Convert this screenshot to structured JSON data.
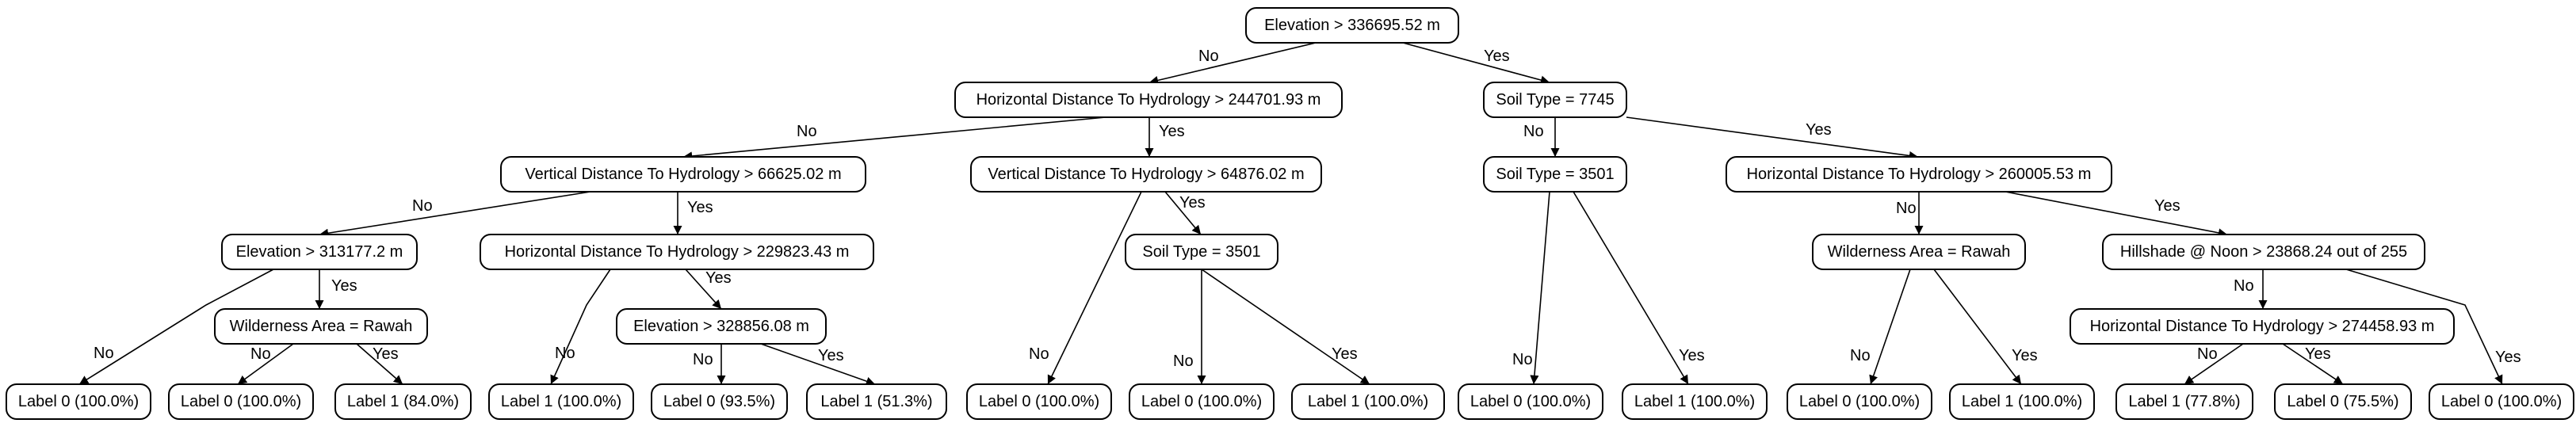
{
  "tree": {
    "nodes": [
      {
        "id": "n0",
        "text": "Elevation > 336695.52 m"
      },
      {
        "id": "n1",
        "text": "Horizontal Distance To Hydrology > 244701.93 m"
      },
      {
        "id": "n2",
        "text": "Soil Type = 7745"
      },
      {
        "id": "n3",
        "text": "Vertical Distance To Hydrology > 66625.02 m"
      },
      {
        "id": "n4",
        "text": "Vertical Distance To Hydrology > 64876.02 m"
      },
      {
        "id": "n5",
        "text": "Soil Type = 3501"
      },
      {
        "id": "n6",
        "text": "Horizontal Distance To Hydrology > 260005.53 m"
      },
      {
        "id": "n7",
        "text": "Elevation > 313177.2 m"
      },
      {
        "id": "n8",
        "text": "Horizontal Distance To Hydrology > 229823.43 m"
      },
      {
        "id": "n9",
        "text": "Soil Type = 3501"
      },
      {
        "id": "n10",
        "text": "Wilderness Area = Rawah"
      },
      {
        "id": "n11",
        "text": "Hillshade @ Noon > 23868.24 out of 255"
      },
      {
        "id": "n12",
        "text": "Wilderness Area = Rawah"
      },
      {
        "id": "n13",
        "text": "Elevation > 328856.08 m"
      },
      {
        "id": "n14",
        "text": "Horizontal Distance To Hydrology > 274458.93 m"
      },
      {
        "id": "l0",
        "text": "Label 0 (100.0%)"
      },
      {
        "id": "l1",
        "text": "Label 0 (100.0%)"
      },
      {
        "id": "l2",
        "text": "Label 1 (84.0%)"
      },
      {
        "id": "l3",
        "text": "Label 1 (100.0%)"
      },
      {
        "id": "l4",
        "text": "Label 0 (93.5%)"
      },
      {
        "id": "l5",
        "text": "Label 1 (51.3%)"
      },
      {
        "id": "l6",
        "text": "Label 0 (100.0%)"
      },
      {
        "id": "l7",
        "text": "Label 0 (100.0%)"
      },
      {
        "id": "l8",
        "text": "Label 1 (100.0%)"
      },
      {
        "id": "l9",
        "text": "Label 0 (100.0%)"
      },
      {
        "id": "l10",
        "text": "Label 1 (100.0%)"
      },
      {
        "id": "l11",
        "text": "Label 0 (100.0%)"
      },
      {
        "id": "l12",
        "text": "Label 1 (100.0%)"
      },
      {
        "id": "l13",
        "text": "Label 1 (77.8%)"
      },
      {
        "id": "l14",
        "text": "Label 0 (75.5%)"
      },
      {
        "id": "l15",
        "text": "Label 0 (100.0%)"
      }
    ],
    "edges": [
      {
        "from": "n0",
        "to": "n1",
        "label": "No"
      },
      {
        "from": "n0",
        "to": "n2",
        "label": "Yes"
      },
      {
        "from": "n1",
        "to": "n3",
        "label": "No"
      },
      {
        "from": "n1",
        "to": "n4",
        "label": "Yes"
      },
      {
        "from": "n2",
        "to": "n5",
        "label": "No"
      },
      {
        "from": "n2",
        "to": "n6",
        "label": "Yes"
      },
      {
        "from": "n3",
        "to": "n7",
        "label": "No"
      },
      {
        "from": "n3",
        "to": "n8",
        "label": "Yes"
      },
      {
        "from": "n4",
        "to": "l6",
        "label": "No"
      },
      {
        "from": "n4",
        "to": "n9",
        "label": "Yes"
      },
      {
        "from": "n5",
        "to": "l9",
        "label": "No"
      },
      {
        "from": "n5",
        "to": "l10",
        "label": "Yes"
      },
      {
        "from": "n6",
        "to": "n10",
        "label": "No"
      },
      {
        "from": "n6",
        "to": "n11",
        "label": "Yes"
      },
      {
        "from": "n7",
        "to": "l0",
        "label": "No"
      },
      {
        "from": "n7",
        "to": "n12",
        "label": "Yes"
      },
      {
        "from": "n8",
        "to": "l3",
        "label": "No"
      },
      {
        "from": "n8",
        "to": "n13",
        "label": "Yes"
      },
      {
        "from": "n9",
        "to": "l7",
        "label": "No"
      },
      {
        "from": "n9",
        "to": "l8",
        "label": "Yes"
      },
      {
        "from": "n10",
        "to": "l11",
        "label": "No"
      },
      {
        "from": "n10",
        "to": "l12",
        "label": "Yes"
      },
      {
        "from": "n11",
        "to": "n14",
        "label": "No"
      },
      {
        "from": "n11",
        "to": "l15",
        "label": "Yes"
      },
      {
        "from": "n12",
        "to": "l1",
        "label": "No"
      },
      {
        "from": "n12",
        "to": "l2",
        "label": "Yes"
      },
      {
        "from": "n13",
        "to": "l4",
        "label": "No"
      },
      {
        "from": "n13",
        "to": "l5",
        "label": "Yes"
      },
      {
        "from": "n14",
        "to": "l13",
        "label": "No"
      },
      {
        "from": "n14",
        "to": "l14",
        "label": "Yes"
      }
    ]
  }
}
